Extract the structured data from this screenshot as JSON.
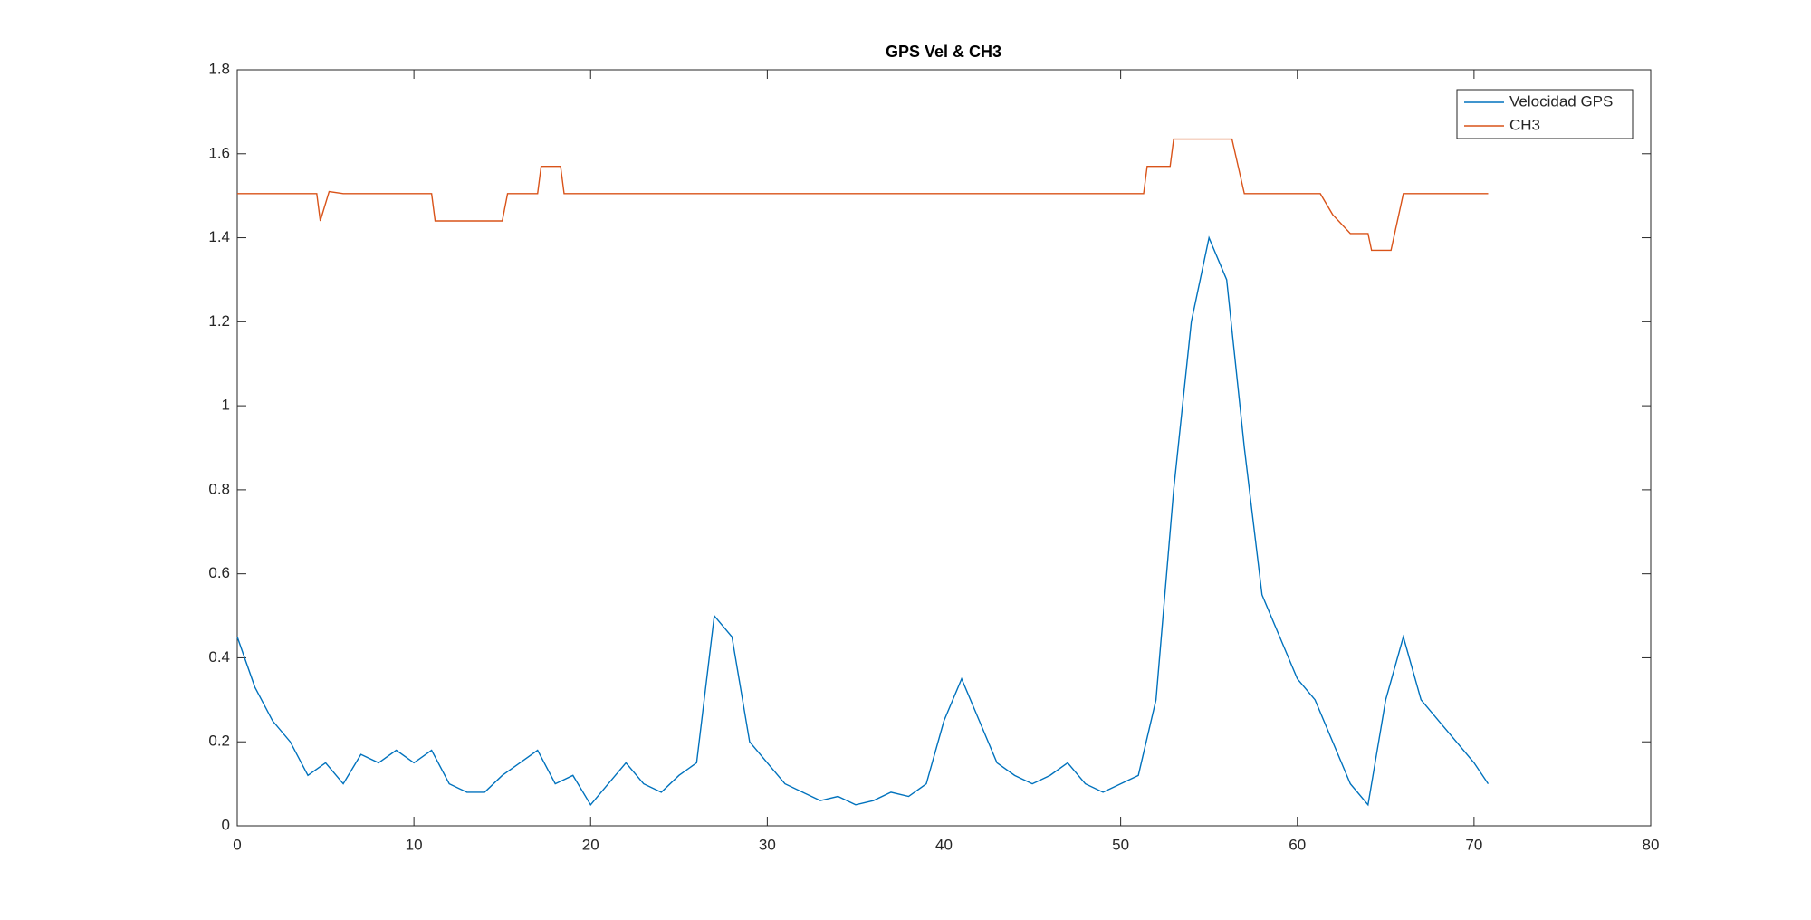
{
  "chart_data": {
    "type": "line",
    "title": "GPS Vel & CH3",
    "series": [
      {
        "name": "Velocidad GPS",
        "color": "#0072bd",
        "x": [
          0,
          1,
          2,
          3,
          4,
          5,
          6,
          7,
          8,
          9,
          10,
          11,
          12,
          13,
          14,
          15,
          16,
          17,
          18,
          19,
          20,
          21,
          22,
          23,
          24,
          25,
          26,
          27,
          28,
          29,
          30,
          31,
          32,
          33,
          34,
          35,
          36,
          37,
          38,
          39,
          40,
          41,
          42,
          43,
          44,
          45,
          46,
          47,
          48,
          49,
          50,
          51,
          52,
          53,
          54,
          55,
          56,
          57,
          58,
          59,
          60,
          61,
          62,
          63,
          64,
          65,
          66,
          67,
          68,
          69,
          70,
          70.8
        ],
        "values": [
          0.45,
          0.33,
          0.25,
          0.2,
          0.12,
          0.15,
          0.1,
          0.17,
          0.15,
          0.18,
          0.15,
          0.18,
          0.1,
          0.08,
          0.08,
          0.12,
          0.15,
          0.18,
          0.1,
          0.12,
          0.05,
          0.1,
          0.15,
          0.1,
          0.08,
          0.12,
          0.15,
          0.5,
          0.45,
          0.2,
          0.15,
          0.1,
          0.08,
          0.06,
          0.07,
          0.05,
          0.06,
          0.08,
          0.07,
          0.1,
          0.25,
          0.35,
          0.25,
          0.15,
          0.12,
          0.1,
          0.12,
          0.15,
          0.1,
          0.08,
          0.1,
          0.12,
          0.3,
          0.8,
          1.2,
          1.4,
          1.3,
          0.9,
          0.55,
          0.45,
          0.35,
          0.3,
          0.2,
          0.1,
          0.05,
          0.3,
          0.45,
          0.3,
          0.25,
          0.2,
          0.15,
          0.1
        ]
      },
      {
        "name": "CH3",
        "color": "#d95319",
        "x": [
          0,
          4.5,
          4.7,
          5.2,
          6,
          11,
          11.2,
          15,
          15.3,
          17,
          17.2,
          18.3,
          18.5,
          51.3,
          51.5,
          52.8,
          53,
          56.3,
          57,
          61.3,
          62,
          63,
          64,
          64.2,
          65.3,
          66,
          70.8
        ],
        "values": [
          1.505,
          1.505,
          1.44,
          1.51,
          1.505,
          1.505,
          1.44,
          1.44,
          1.505,
          1.505,
          1.57,
          1.57,
          1.505,
          1.505,
          1.57,
          1.57,
          1.635,
          1.635,
          1.505,
          1.505,
          1.455,
          1.41,
          1.41,
          1.37,
          1.37,
          1.505,
          1.505
        ]
      }
    ],
    "xlim": [
      0,
      80
    ],
    "xticks": [
      0,
      10,
      20,
      30,
      40,
      50,
      60,
      70,
      80
    ],
    "ylim": [
      0,
      1.8
    ],
    "yticks": [
      0,
      0.2,
      0.4,
      0.6,
      0.8,
      1,
      1.2,
      1.4,
      1.6,
      1.8
    ],
    "legend": "northeast"
  }
}
